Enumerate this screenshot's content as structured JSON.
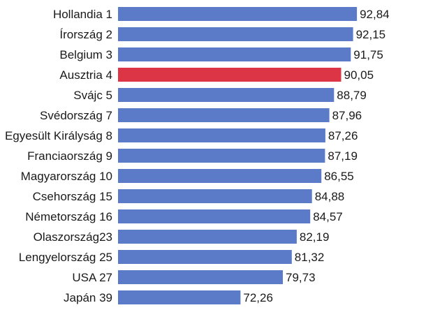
{
  "chart_data": {
    "type": "bar",
    "orientation": "horizontal",
    "title": "",
    "xlabel": "",
    "ylabel": "",
    "grid": false,
    "legend": "none",
    "categories": [
      "Hollandia 1",
      "Írország 2",
      "Belgium 3",
      "Ausztria 4",
      "Svájc 5",
      "Svédország 7",
      "Egyesült Királyság 8",
      "Franciaország 9",
      "Magyarország 10",
      "Csehország 15",
      "Németország 16",
      "Olaszország23",
      "Lengyelország 25",
      "USA 27",
      "Japán 39"
    ],
    "values": [
      92.84,
      92.15,
      91.75,
      90.05,
      88.79,
      87.96,
      87.26,
      87.19,
      86.55,
      84.88,
      84.57,
      82.19,
      81.32,
      79.73,
      72.26
    ],
    "value_labels": [
      "92,84",
      "92,15",
      "91,75",
      "90,05",
      "88,79",
      "87,96",
      "87,26",
      "87,19",
      "86,55",
      "84,88",
      "84,57",
      "82,19",
      "81,32",
      "79,73",
      "72,26"
    ],
    "highlight_index": 3,
    "colors": {
      "bar": "#5b7bc9",
      "highlight": "#dc3545",
      "text": "#1a1a1a"
    }
  }
}
